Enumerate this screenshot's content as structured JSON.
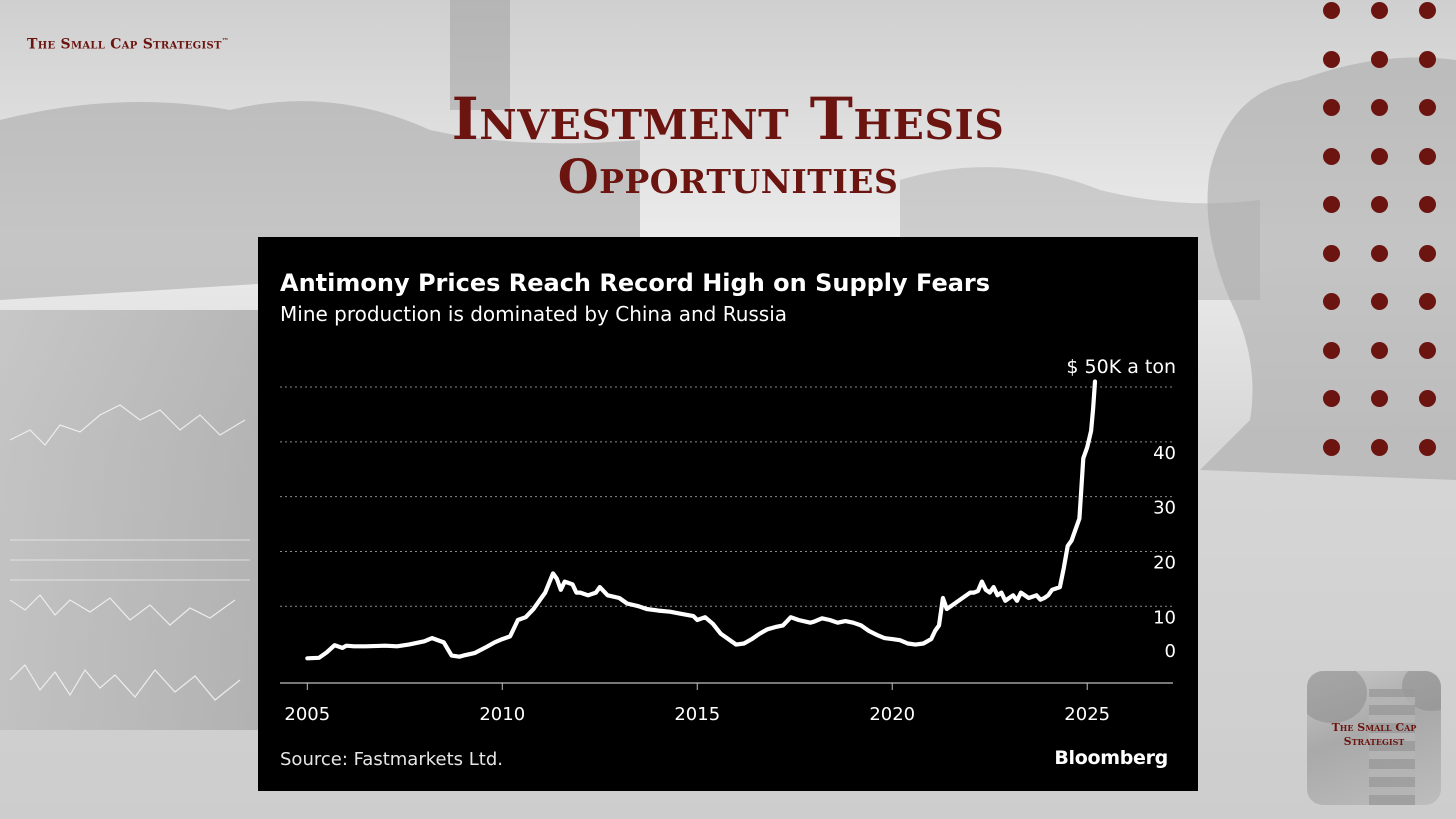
{
  "brand": {
    "name": "The Small Cap Strategist",
    "tm": "™"
  },
  "heading": {
    "line1": "Investment Thesis",
    "line2": "Opportunities"
  },
  "logo_badge": {
    "text_line1": "The Small Cap",
    "text_line2": "Strategist"
  },
  "colors": {
    "accent": "#6b1410",
    "background": "#d9d9d9",
    "panel": "#000000",
    "line": "#ffffff"
  },
  "chart_data": {
    "type": "line",
    "title": "Antimony Prices Reach Record High on Supply Fears",
    "subtitle": "Mine production is dominated by China and Russia",
    "unit_label": "$ 50K a ton",
    "source": "Source: Fastmarkets Ltd.",
    "publisher": "Bloomberg",
    "y_ticks": [
      0,
      10,
      20,
      30,
      40
    ],
    "x_ticks": [
      2005,
      2010,
      2015,
      2020,
      2025
    ],
    "xlim": [
      2004.3,
      2027.2
    ],
    "ylim": [
      -4,
      50
    ],
    "grid": true,
    "series": [
      {
        "x": [
          2005.0,
          2005.3,
          2005.5,
          2005.7,
          2005.9,
          2006.0,
          2006.2,
          2006.5,
          2007.0,
          2007.3,
          2007.6,
          2008.0,
          2008.2,
          2008.5,
          2008.7,
          2008.9,
          2009.0,
          2009.3,
          2009.6,
          2009.8,
          2010.0,
          2010.2,
          2010.4,
          2010.6,
          2010.8,
          2011.0,
          2011.1,
          2011.3,
          2011.4,
          2011.5,
          2011.6,
          2011.8,
          2011.9,
          2012.0,
          2012.2,
          2012.4,
          2012.5,
          2012.7,
          2013.0,
          2013.2,
          2013.5,
          2013.7,
          2014.0,
          2014.3,
          2014.6,
          2014.9,
          2015.0,
          2015.2,
          2015.4,
          2015.6,
          2015.8,
          2016.0,
          2016.2,
          2016.4,
          2016.6,
          2016.8,
          2017.0,
          2017.2,
          2017.4,
          2017.6,
          2017.9,
          2018.0,
          2018.2,
          2018.4,
          2018.6,
          2018.8,
          2019.0,
          2019.2,
          2019.4,
          2019.6,
          2019.8,
          2020.0,
          2020.2,
          2020.4,
          2020.6,
          2020.8,
          2021.0,
          2021.1,
          2021.2,
          2021.3,
          2021.4,
          2021.5,
          2021.7,
          2021.9,
          2022.0,
          2022.1,
          2022.2,
          2022.3,
          2022.4,
          2022.5,
          2022.6,
          2022.7,
          2022.8,
          2022.9,
          2023.0,
          2023.1,
          2023.2,
          2023.3,
          2023.5,
          2023.7,
          2023.8,
          2023.9,
          2024.0,
          2024.1,
          2024.3,
          2024.4,
          2024.5,
          2024.6,
          2024.7,
          2024.8,
          2024.9,
          2025.0,
          2025.1,
          2025.15,
          2025.2
        ],
        "y": [
          0.5,
          0.6,
          1.6,
          2.9,
          2.4,
          2.8,
          2.7,
          2.7,
          2.8,
          2.7,
          3.0,
          3.6,
          4.2,
          3.4,
          1.0,
          0.8,
          1.0,
          1.5,
          2.6,
          3.4,
          4.0,
          4.5,
          7.5,
          8.0,
          9.5,
          11.5,
          12.5,
          16.0,
          15.0,
          13.0,
          14.5,
          14.0,
          12.5,
          12.5,
          12.0,
          12.5,
          13.5,
          12.0,
          11.5,
          10.5,
          10.0,
          9.5,
          9.2,
          9.0,
          8.6,
          8.2,
          7.5,
          8.0,
          6.8,
          5.0,
          4.0,
          3.0,
          3.2,
          4.0,
          5.0,
          5.8,
          6.2,
          6.5,
          8.0,
          7.5,
          7.0,
          7.2,
          7.8,
          7.5,
          7.0,
          7.3,
          7.0,
          6.5,
          5.5,
          4.8,
          4.2,
          4.0,
          3.8,
          3.2,
          3.0,
          3.2,
          4.0,
          5.5,
          6.5,
          11.5,
          9.5,
          10.0,
          11.0,
          12.0,
          12.5,
          12.5,
          12.8,
          14.5,
          13.0,
          12.5,
          13.5,
          12.0,
          12.5,
          11.0,
          11.5,
          12.0,
          11.0,
          12.5,
          11.5,
          12.0,
          11.2,
          11.5,
          12.0,
          13.0,
          13.5,
          17.0,
          21.0,
          22.0,
          24.0,
          26.0,
          37.0,
          39.0,
          42.0,
          46.0,
          51.0
        ]
      }
    ]
  }
}
